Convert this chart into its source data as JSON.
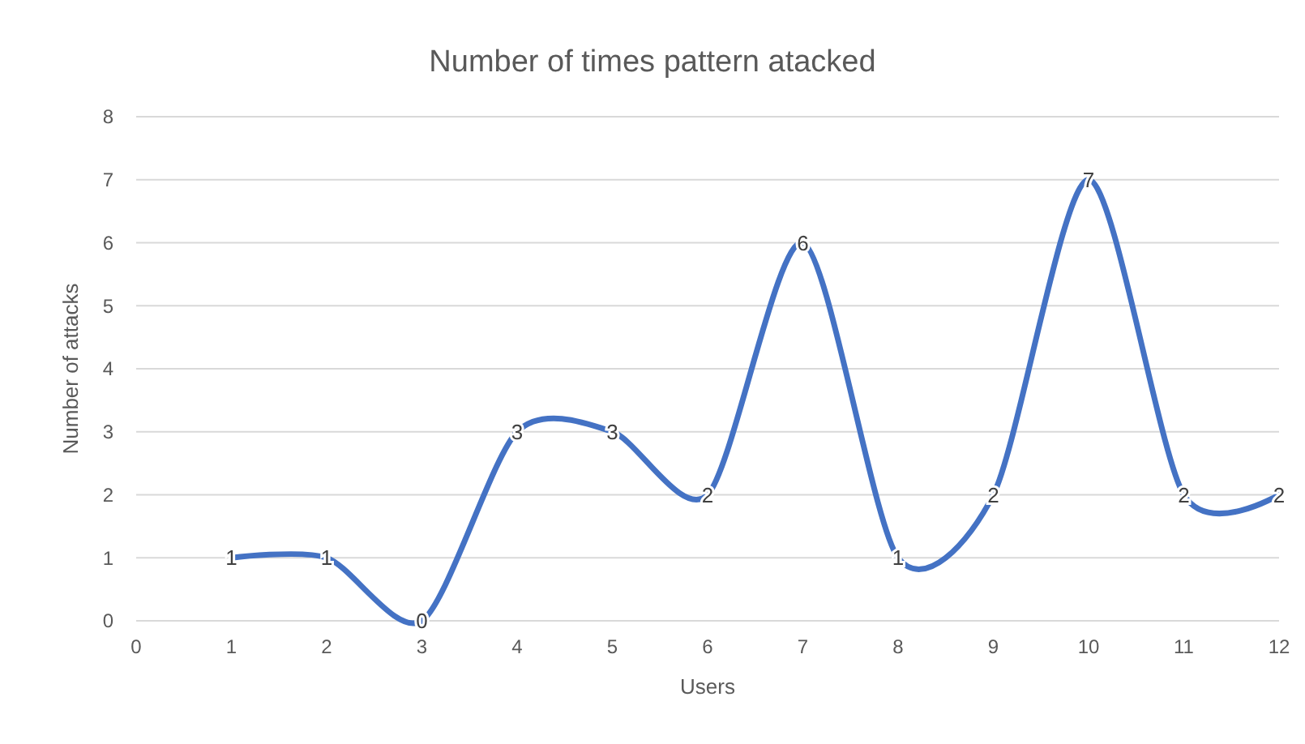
{
  "chart_data": {
    "type": "line",
    "title": "Number of times pattern atacked",
    "xlabel": "Users",
    "ylabel": "Number of attacks",
    "x": [
      1,
      2,
      3,
      4,
      5,
      6,
      7,
      8,
      9,
      10,
      11,
      12
    ],
    "series": [
      {
        "color": "#4472c4",
        "values": [
          1,
          1,
          0,
          3,
          3,
          2,
          6,
          1,
          2,
          7,
          2,
          2
        ]
      }
    ],
    "xlim": [
      0,
      12
    ],
    "xticks": [
      0,
      1,
      2,
      3,
      4,
      5,
      6,
      7,
      8,
      9,
      10,
      11,
      12
    ],
    "ylim": [
      0,
      8
    ],
    "yticks": [
      0,
      1,
      2,
      3,
      4,
      5,
      6,
      7,
      8
    ],
    "grid": "y",
    "data_labels": true,
    "marker": "none",
    "line_style": "solid"
  }
}
